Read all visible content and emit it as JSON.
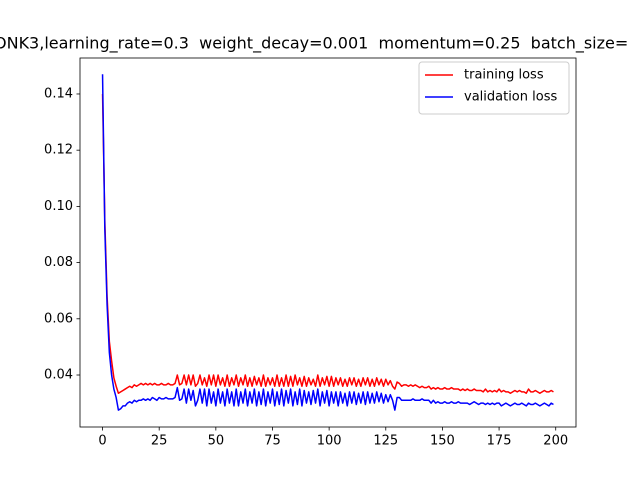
{
  "chart_data": {
    "type": "line",
    "title": "ONK3,learning_rate=0.3  weight_decay=0.001  momentum=0.25  batch_size=",
    "x": [
      0,
      1,
      2,
      3,
      4,
      5,
      6,
      7,
      8,
      9,
      10,
      11,
      12,
      13,
      14,
      15,
      16,
      17,
      18,
      19,
      20,
      21,
      22,
      23,
      24,
      25,
      26,
      27,
      28,
      29,
      30,
      31,
      32,
      33,
      34,
      35,
      36,
      37,
      38,
      39,
      40,
      41,
      42,
      43,
      44,
      45,
      46,
      47,
      48,
      49,
      50,
      51,
      52,
      53,
      54,
      55,
      56,
      57,
      58,
      59,
      60,
      61,
      62,
      63,
      64,
      65,
      66,
      67,
      68,
      69,
      70,
      71,
      72,
      73,
      74,
      75,
      76,
      77,
      78,
      79,
      80,
      81,
      82,
      83,
      84,
      85,
      86,
      87,
      88,
      89,
      90,
      91,
      92,
      93,
      94,
      95,
      96,
      97,
      98,
      99,
      100,
      101,
      102,
      103,
      104,
      105,
      106,
      107,
      108,
      109,
      110,
      111,
      112,
      113,
      114,
      115,
      116,
      117,
      118,
      119,
      120,
      121,
      122,
      123,
      124,
      125,
      126,
      127,
      128,
      129,
      130,
      131,
      132,
      133,
      134,
      135,
      136,
      137,
      138,
      139,
      140,
      141,
      142,
      143,
      144,
      145,
      146,
      147,
      148,
      149,
      150,
      151,
      152,
      153,
      154,
      155,
      156,
      157,
      158,
      159,
      160,
      161,
      162,
      163,
      164,
      165,
      166,
      167,
      168,
      169,
      170,
      171,
      172,
      173,
      174,
      175,
      176,
      177,
      178,
      179,
      180,
      181,
      182,
      183,
      184,
      185,
      186,
      187,
      188,
      189,
      190,
      191,
      192,
      193,
      194,
      195,
      196,
      197,
      198,
      199
    ],
    "series": [
      {
        "name": "training loss",
        "color": "#ff0000",
        "values": [
          0.14,
          0.095,
          0.068,
          0.052,
          0.045,
          0.039,
          0.036,
          0.0335,
          0.034,
          0.0345,
          0.035,
          0.0355,
          0.036,
          0.0355,
          0.0365,
          0.036,
          0.0365,
          0.037,
          0.0365,
          0.037,
          0.0365,
          0.037,
          0.0365,
          0.037,
          0.0365,
          0.0365,
          0.037,
          0.0365,
          0.0365,
          0.037,
          0.0365,
          0.0365,
          0.037,
          0.04,
          0.0365,
          0.037,
          0.04,
          0.0365,
          0.04,
          0.0365,
          0.04,
          0.036,
          0.037,
          0.04,
          0.0365,
          0.039,
          0.036,
          0.04,
          0.0365,
          0.04,
          0.036,
          0.04,
          0.0365,
          0.039,
          0.036,
          0.04,
          0.036,
          0.039,
          0.0365,
          0.04,
          0.036,
          0.039,
          0.0365,
          0.04,
          0.036,
          0.039,
          0.036,
          0.0395,
          0.0365,
          0.039,
          0.036,
          0.04,
          0.036,
          0.039,
          0.0365,
          0.039,
          0.036,
          0.04,
          0.036,
          0.039,
          0.036,
          0.04,
          0.036,
          0.0395,
          0.036,
          0.04,
          0.0365,
          0.039,
          0.036,
          0.0395,
          0.036,
          0.039,
          0.0365,
          0.0385,
          0.036,
          0.04,
          0.036,
          0.039,
          0.0365,
          0.0395,
          0.036,
          0.0395,
          0.036,
          0.039,
          0.0365,
          0.039,
          0.036,
          0.0385,
          0.036,
          0.039,
          0.0365,
          0.039,
          0.036,
          0.0385,
          0.036,
          0.039,
          0.0365,
          0.039,
          0.036,
          0.0385,
          0.036,
          0.039,
          0.0365,
          0.0385,
          0.036,
          0.0385,
          0.0365,
          0.038,
          0.036,
          0.035,
          0.0375,
          0.037,
          0.036,
          0.0365,
          0.0365,
          0.036,
          0.0365,
          0.036,
          0.0365,
          0.036,
          0.0355,
          0.036,
          0.0355,
          0.0355,
          0.036,
          0.035,
          0.0355,
          0.035,
          0.0355,
          0.035,
          0.035,
          0.0355,
          0.035,
          0.035,
          0.0355,
          0.035,
          0.035,
          0.035,
          0.0345,
          0.035,
          0.0345,
          0.035,
          0.0345,
          0.0345,
          0.035,
          0.0345,
          0.0345,
          0.0345,
          0.034,
          0.035,
          0.034,
          0.0345,
          0.034,
          0.0345,
          0.034,
          0.035,
          0.034,
          0.0345,
          0.034,
          0.034,
          0.0335,
          0.034,
          0.0345,
          0.034,
          0.0345,
          0.034,
          0.034,
          0.0335,
          0.035,
          0.034,
          0.034,
          0.0345,
          0.034,
          0.0335,
          0.034,
          0.0345,
          0.034,
          0.034,
          0.0345,
          0.034
        ]
      },
      {
        "name": "validation loss",
        "color": "#0000ff",
        "values": [
          0.147,
          0.092,
          0.065,
          0.048,
          0.04,
          0.035,
          0.032,
          0.0275,
          0.028,
          0.029,
          0.029,
          0.03,
          0.0305,
          0.03,
          0.031,
          0.0305,
          0.031,
          0.031,
          0.0315,
          0.031,
          0.0315,
          0.031,
          0.032,
          0.0315,
          0.031,
          0.032,
          0.0315,
          0.0315,
          0.032,
          0.0315,
          0.0315,
          0.0315,
          0.032,
          0.0355,
          0.031,
          0.0315,
          0.035,
          0.03,
          0.035,
          0.031,
          0.0345,
          0.029,
          0.031,
          0.035,
          0.03,
          0.035,
          0.029,
          0.035,
          0.03,
          0.034,
          0.029,
          0.035,
          0.03,
          0.034,
          0.029,
          0.035,
          0.03,
          0.034,
          0.029,
          0.035,
          0.029,
          0.034,
          0.03,
          0.035,
          0.029,
          0.034,
          0.03,
          0.035,
          0.029,
          0.034,
          0.0295,
          0.035,
          0.029,
          0.034,
          0.03,
          0.035,
          0.029,
          0.034,
          0.0295,
          0.035,
          0.029,
          0.0345,
          0.03,
          0.035,
          0.029,
          0.034,
          0.0295,
          0.035,
          0.029,
          0.0345,
          0.03,
          0.034,
          0.0295,
          0.0345,
          0.03,
          0.035,
          0.029,
          0.034,
          0.03,
          0.0345,
          0.029,
          0.034,
          0.03,
          0.034,
          0.029,
          0.034,
          0.03,
          0.0335,
          0.029,
          0.034,
          0.03,
          0.034,
          0.0295,
          0.0335,
          0.03,
          0.034,
          0.0295,
          0.034,
          0.03,
          0.0335,
          0.03,
          0.034,
          0.0305,
          0.0335,
          0.03,
          0.033,
          0.0305,
          0.033,
          0.031,
          0.0275,
          0.032,
          0.032,
          0.031,
          0.031,
          0.031,
          0.031,
          0.031,
          0.0315,
          0.031,
          0.031,
          0.031,
          0.0315,
          0.031,
          0.031,
          0.031,
          0.03,
          0.031,
          0.03,
          0.0305,
          0.03,
          0.03,
          0.0305,
          0.03,
          0.03,
          0.0305,
          0.03,
          0.03,
          0.0305,
          0.03,
          0.03,
          0.03,
          0.03,
          0.0295,
          0.03,
          0.0305,
          0.03,
          0.0295,
          0.03,
          0.03,
          0.0295,
          0.03,
          0.0295,
          0.03,
          0.0295,
          0.03,
          0.03,
          0.029,
          0.0295,
          0.03,
          0.0295,
          0.029,
          0.0295,
          0.03,
          0.0295,
          0.0295,
          0.03,
          0.0295,
          0.029,
          0.03,
          0.0295,
          0.0295,
          0.03,
          0.0295,
          0.029,
          0.0295,
          0.03,
          0.0295,
          0.029,
          0.03,
          0.0295
        ]
      }
    ],
    "xlim": [
      -9.95,
      208.95
    ],
    "xticks": [
      0,
      25,
      50,
      75,
      100,
      125,
      150,
      175,
      200
    ],
    "ylim": [
      0.0215,
      0.1528
    ],
    "yticks": [
      0.04,
      0.06,
      0.08,
      {
        "value": 0.1,
        "label": "0.10"
      },
      0.12,
      0.14
    ],
    "legend": "upper right"
  }
}
